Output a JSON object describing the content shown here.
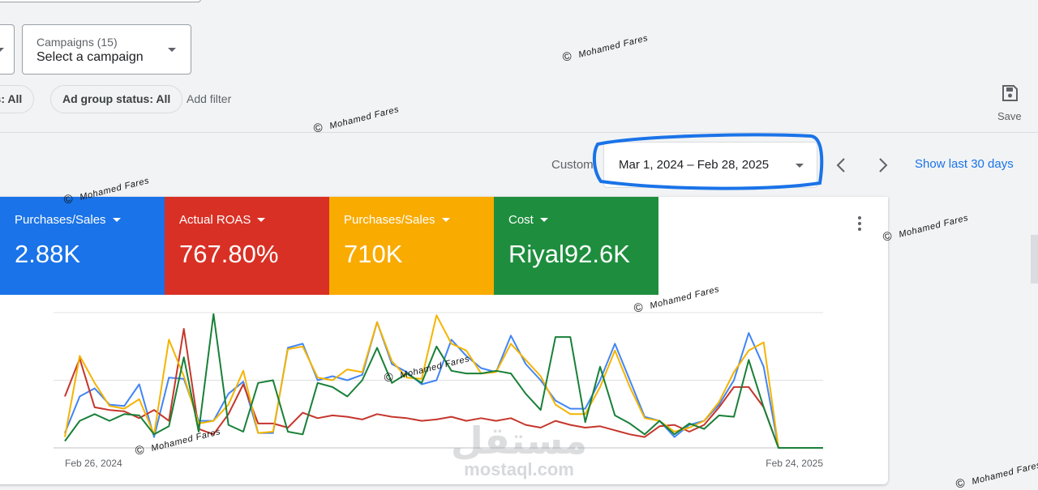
{
  "toolbar": {
    "campaign_picker": {
      "label": "Campaigns (15)",
      "value": "Select a campaign"
    },
    "filters": [
      "us: All",
      "Ad group status: All"
    ],
    "add_filter": "Add filter",
    "save": "Save"
  },
  "date_range": {
    "preset": "Custom",
    "value": "Mar 1, 2024 – Feb 28, 2025",
    "shortcut": "Show last 30 days"
  },
  "scorecards": [
    {
      "label": "Purchases/Sales",
      "value": "2.88K",
      "color": "#1a73e8"
    },
    {
      "label": "Actual ROAS",
      "value": "767.80%",
      "color": "#d93025"
    },
    {
      "label": "Purchases/Sales",
      "value": "710K",
      "color": "#f9ab00"
    },
    {
      "label": "Cost",
      "value": "Riyal92.6K",
      "color": "#1e8e3e"
    }
  ],
  "chart_data": {
    "type": "line",
    "categories": [
      "Feb 26, 2024",
      null,
      null,
      null,
      null,
      null,
      null,
      null,
      null,
      null,
      null,
      null,
      null,
      null,
      null,
      null,
      null,
      null,
      null,
      null,
      null,
      null,
      null,
      null,
      null,
      null,
      null,
      null,
      null,
      null,
      null,
      null,
      null,
      null,
      null,
      null,
      null,
      null,
      null,
      null,
      null,
      null,
      null,
      null,
      null,
      null,
      null,
      null,
      null,
      null,
      null,
      "Feb 24, 2025"
    ],
    "ylim": [
      0,
      100
    ],
    "yticks": [
      0,
      50,
      100
    ],
    "grid": true,
    "series": [
      {
        "name": "Purchases/Sales",
        "color": "#4285f4",
        "values": [
          11,
          38,
          44,
          32,
          31,
          47,
          8,
          52,
          51,
          20,
          20,
          40,
          49,
          11,
          11,
          74,
          77,
          50,
          53,
          50,
          54,
          93,
          62,
          56,
          47,
          50,
          80,
          68,
          59,
          56,
          83,
          62,
          50,
          35,
          29,
          29,
          50,
          77,
          50,
          23,
          20,
          8,
          17,
          20,
          32,
          50,
          85,
          60,
          0,
          0,
          0,
          0
        ]
      },
      {
        "name": "Actual ROAS",
        "color": "#c5362c",
        "values": [
          38,
          66,
          30,
          28,
          27,
          22,
          28,
          20,
          88,
          14,
          10,
          25,
          47,
          18,
          18,
          15,
          26,
          22,
          24,
          23,
          21,
          25,
          23,
          22,
          20,
          21,
          23,
          20,
          22,
          20,
          22,
          17,
          15,
          20,
          17,
          15,
          16,
          13,
          10,
          8,
          16,
          17,
          12,
          17,
          30,
          45,
          45,
          30,
          0,
          0,
          0,
          0
        ]
      },
      {
        "name": "Purchases/Sales",
        "color": "#f4b400",
        "values": [
          8,
          68,
          48,
          31,
          29,
          36,
          10,
          80,
          53,
          18,
          20,
          32,
          57,
          11,
          12,
          73,
          75,
          52,
          50,
          58,
          56,
          93,
          64,
          52,
          51,
          98,
          77,
          72,
          55,
          56,
          77,
          65,
          53,
          32,
          25,
          25,
          45,
          72,
          45,
          22,
          20,
          12,
          15,
          20,
          34,
          56,
          72,
          78,
          0,
          0,
          0,
          0
        ]
      },
      {
        "name": "Cost",
        "color": "#188038",
        "values": [
          5,
          20,
          25,
          20,
          25,
          24,
          10,
          16,
          67,
          12,
          99,
          17,
          12,
          48,
          50,
          12,
          10,
          48,
          45,
          38,
          50,
          74,
          48,
          55,
          48,
          75,
          57,
          55,
          55,
          57,
          55,
          40,
          28,
          82,
          82,
          19,
          60,
          24,
          18,
          10,
          20,
          10,
          18,
          14,
          24,
          23,
          65,
          30,
          0,
          0,
          0,
          0
        ]
      }
    ]
  },
  "watermark": {
    "symbol": "©",
    "name": "Mohamed Fares",
    "logo": "مستقل",
    "site": "mostaql.com"
  }
}
